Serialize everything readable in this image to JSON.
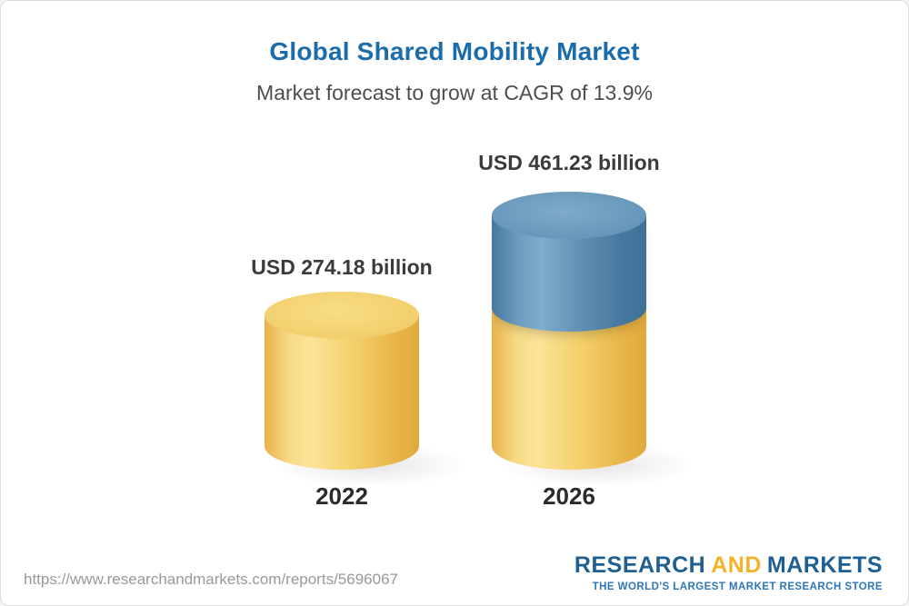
{
  "chart_data": {
    "type": "bar",
    "title": "Global Shared Mobility Market",
    "subtitle": "Market forecast to grow at CAGR of 13.9%",
    "unit": "USD billion",
    "cagr_percent": 13.9,
    "categories": [
      "2022",
      "2026"
    ],
    "values": [
      274.18,
      461.23
    ],
    "bars": [
      {
        "category": "2022",
        "value": 274.18,
        "label": "USD 274.18 billion",
        "segment_colors": [
          "#f4cf6b"
        ]
      },
      {
        "category": "2026",
        "value": 461.23,
        "label": "USD 461.23 billion",
        "segment_colors": [
          "#5e8db2",
          "#f4cf6b"
        ]
      }
    ],
    "legend_position": "none",
    "grid": false
  },
  "footer": {
    "url": "https://www.researchandmarkets.com/reports/5696067",
    "logo": {
      "word1": "RESEARCH",
      "word2": "AND",
      "word3": "MARKETS",
      "tagline": "THE WORLD'S LARGEST MARKET RESEARCH STORE"
    }
  },
  "colors": {
    "title_blue": "#1b6cab",
    "subtitle_gray": "#4d4d4d",
    "bar_yellow": "#f4cf6b",
    "bar_blue": "#5e8db2",
    "logo_blue": "#1e6091",
    "logo_orange": "#f2b32a",
    "url_gray": "#999999"
  }
}
